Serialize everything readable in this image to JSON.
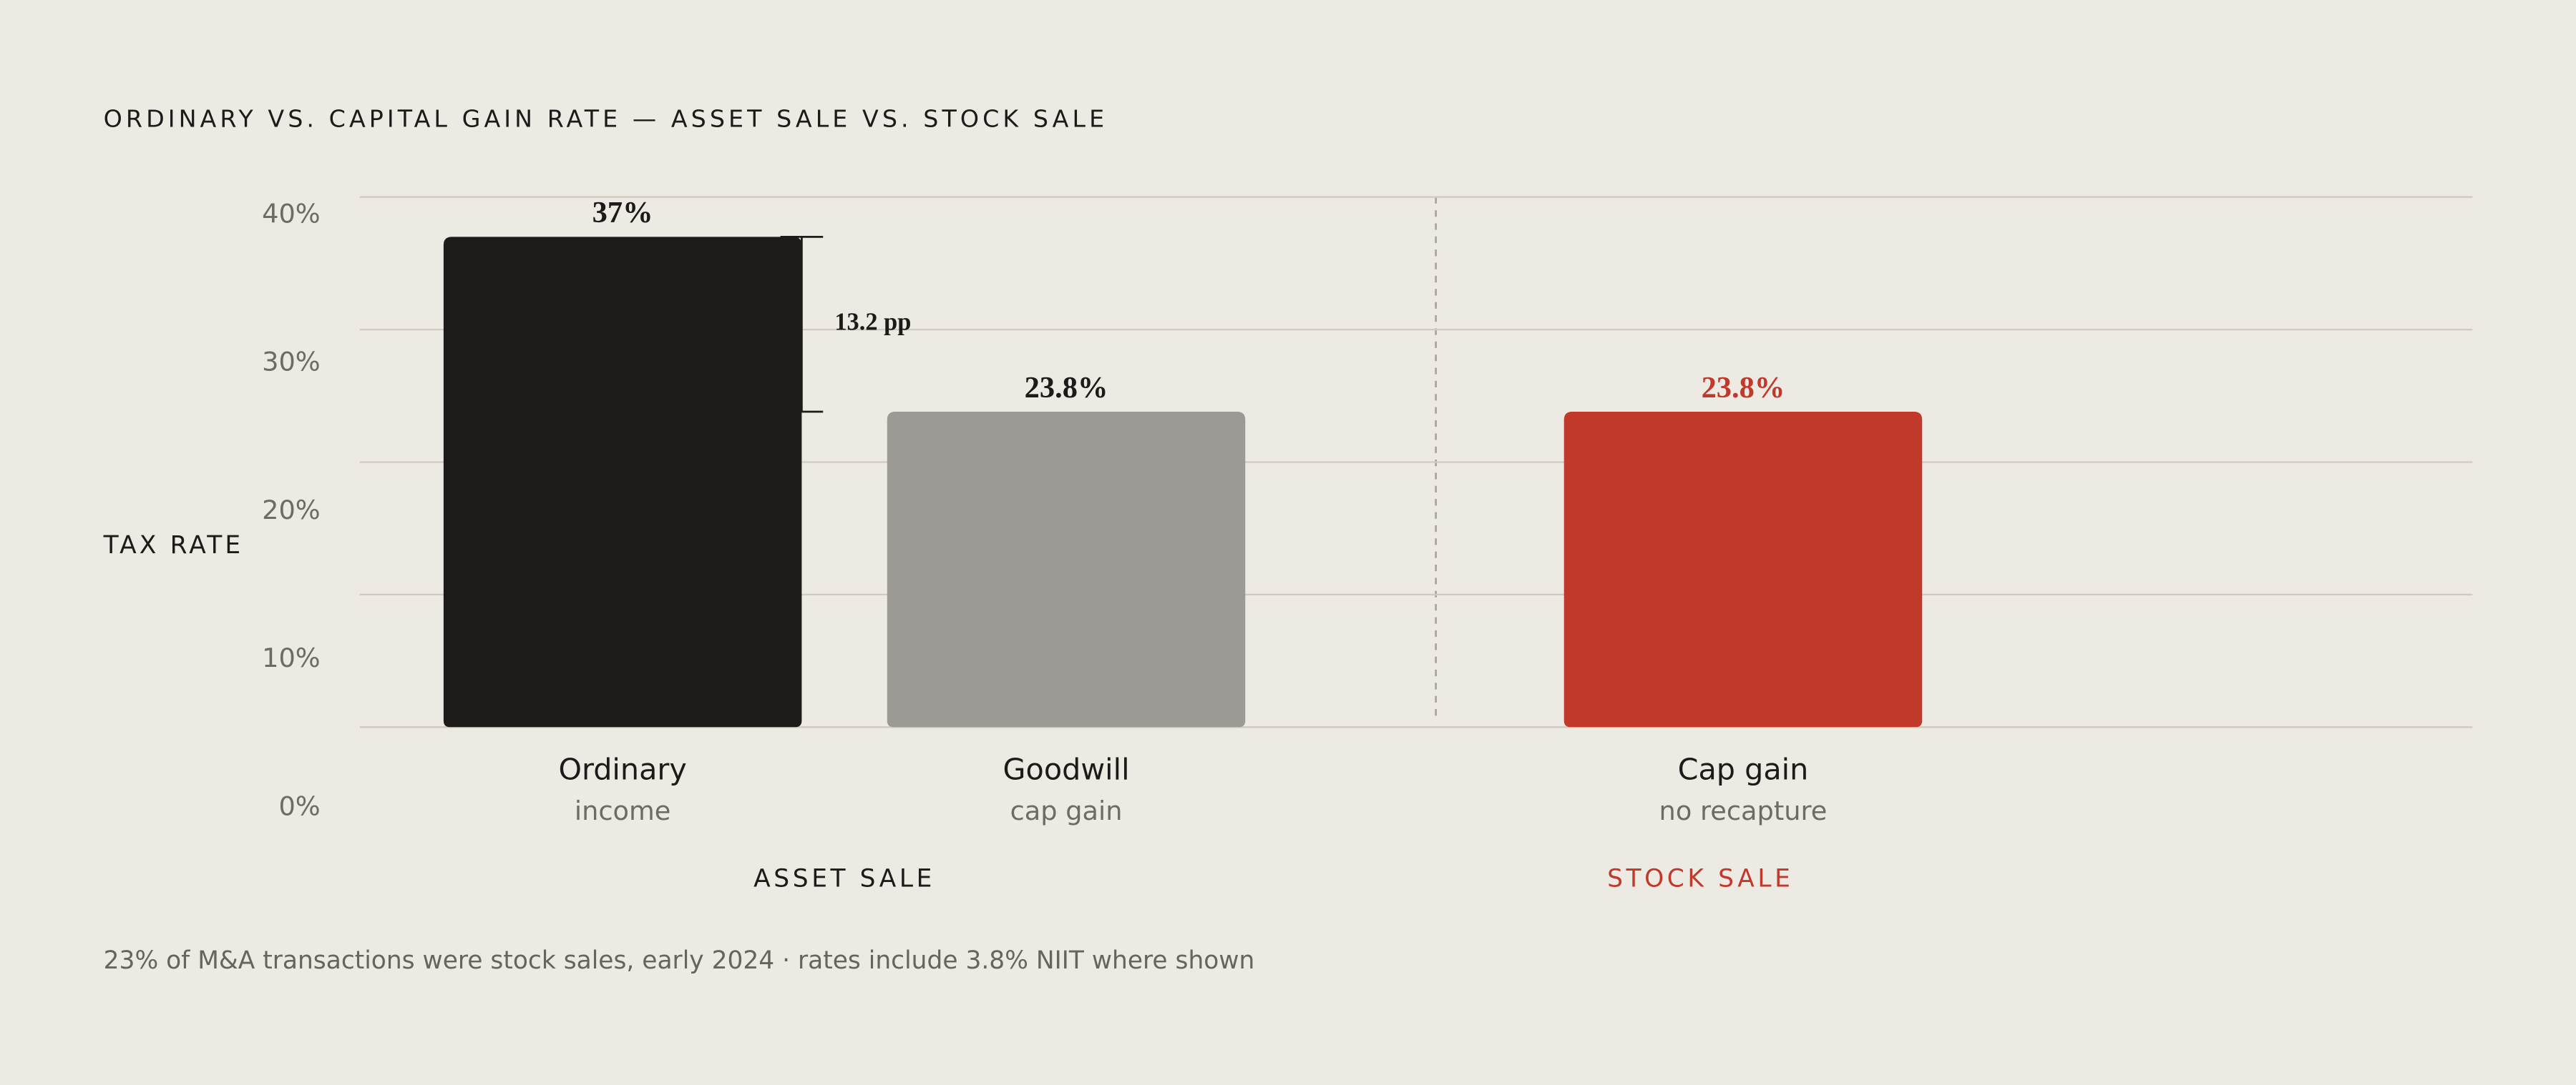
{
  "chart_data": {
    "type": "bar",
    "title": "ORDINARY VS. CAPITAL GAIN RATE — ASSET SALE VS. STOCK SALE",
    "y_label": "TAX RATE",
    "categories": [
      "Ordinary",
      "Goodwill",
      "Cap gain"
    ],
    "subcategories": [
      "income",
      "cap gain",
      "no recapture"
    ],
    "values": [
      37,
      23.8,
      23.8
    ],
    "value_labels": [
      "37%",
      "23.8%",
      "23.8%"
    ],
    "colors": [
      "#1c1b19",
      "#9b9a95",
      "#c0392b"
    ],
    "value_label_colors": [
      "#1c1b19",
      "#1c1b19",
      "#c0392b"
    ],
    "groups": [
      {
        "label": "ASSET SALE",
        "color": "#1c1b19",
        "size": 2
      },
      {
        "label": "STOCK SALE",
        "color": "#c0392b",
        "size": 1
      }
    ],
    "annotation": "13.2 pp",
    "ylim": [
      0,
      40
    ],
    "yticks": [
      {
        "value": 0,
        "label": "0%"
      },
      {
        "value": 10,
        "label": "10%"
      },
      {
        "value": 20,
        "label": "20%"
      },
      {
        "value": 30,
        "label": "30%"
      },
      {
        "value": 40,
        "label": "40%"
      }
    ],
    "grid": true,
    "footnote": "23% of M&A transactions were stock sales, early 2024 · rates include 3.8% NIIT where shown"
  }
}
